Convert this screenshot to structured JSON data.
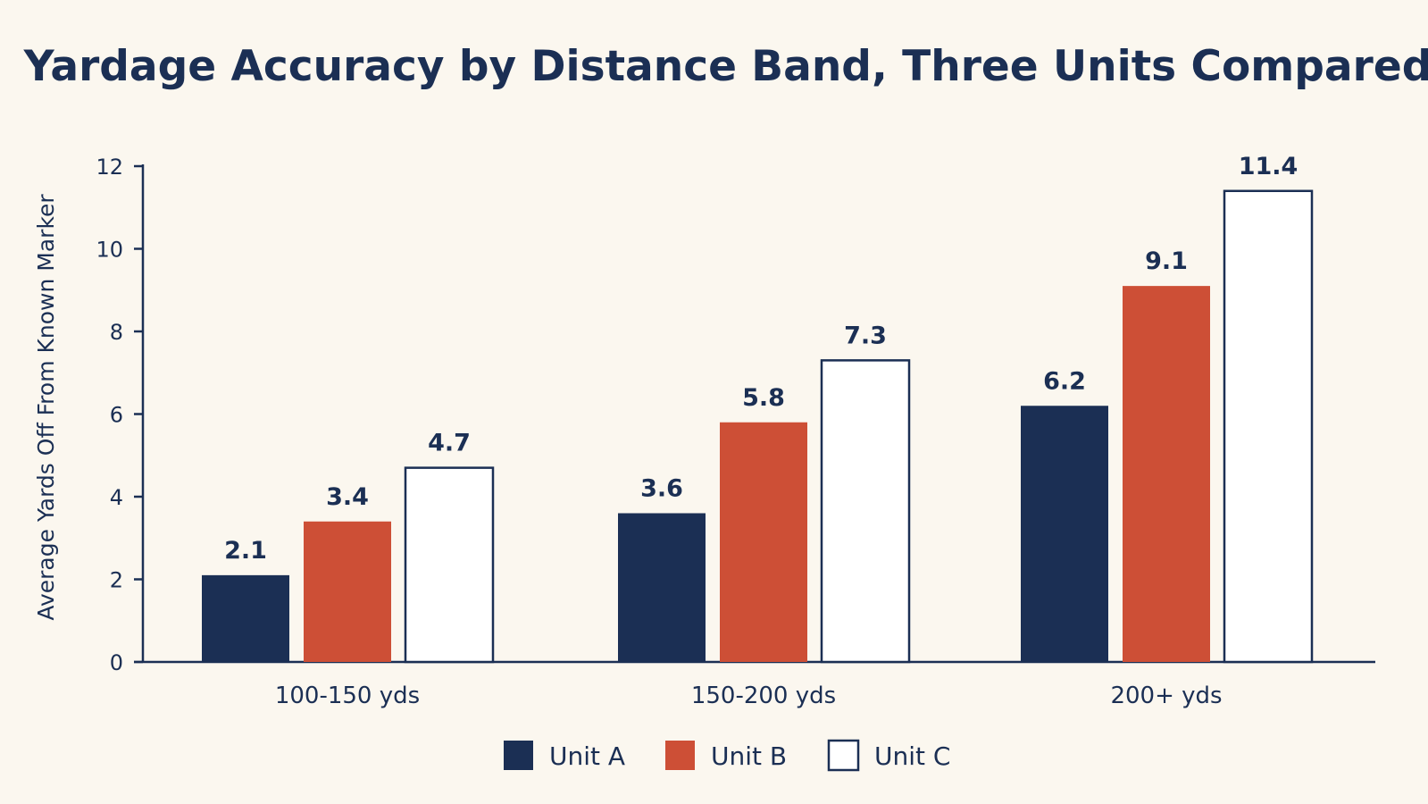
{
  "chart_data": {
    "type": "bar",
    "title": "Yardage Accuracy by Distance Band, Three Units Compared",
    "xlabel": "",
    "ylabel": "Average Yards Off From Known Marker",
    "ylim": [
      0,
      12
    ],
    "yticks": [
      0,
      2,
      4,
      6,
      8,
      10,
      12
    ],
    "grid": false,
    "legend_position": "bottom-center",
    "categories": [
      "100-150 yds",
      "150-200 yds",
      "200+ yds"
    ],
    "series": [
      {
        "name": "Unit A",
        "values": [
          2.1,
          3.6,
          6.2
        ],
        "color": "#1b2f54",
        "fill": "#1b2f54"
      },
      {
        "name": "Unit B",
        "values": [
          3.4,
          5.8,
          9.1
        ],
        "color": "#cd4f36",
        "fill": "#cd4f36"
      },
      {
        "name": "Unit C",
        "values": [
          4.7,
          7.3,
          11.4
        ],
        "color": "#1b2f54",
        "fill": "#ffffff"
      }
    ],
    "colors": {
      "background": "#fbf7ef",
      "text": "#1b2f54",
      "axis": "#1b2f54"
    }
  }
}
